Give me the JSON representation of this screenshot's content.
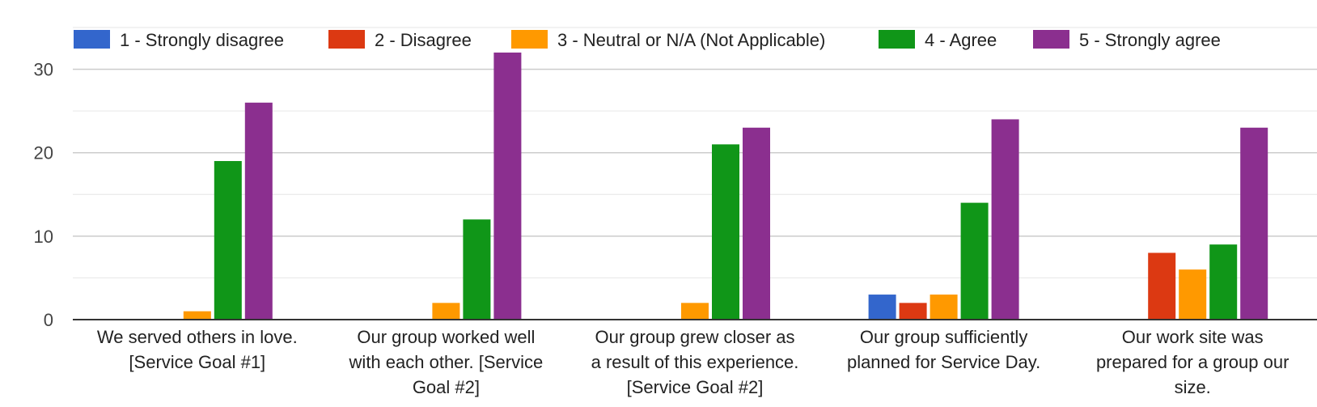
{
  "chart_data": {
    "type": "bar",
    "title": "",
    "xlabel": "",
    "ylabel": "",
    "ylim": [
      0,
      35
    ],
    "yticks": [
      0,
      10,
      20,
      30
    ],
    "grid": true,
    "legend_position": "top",
    "categories": [
      [
        "We served others in love.",
        "[Service Goal #1]"
      ],
      [
        "Our group worked well",
        "with each other. [Service",
        "Goal #2]"
      ],
      [
        "Our group grew closer as",
        "a result of this experience.",
        "[Service Goal #2]"
      ],
      [
        "Our group sufficiently",
        "planned for Service Day."
      ],
      [
        "Our work site was",
        "prepared for a group our",
        "size."
      ]
    ],
    "series": [
      {
        "name": "1 - Strongly disagree",
        "color": "#3366cc",
        "values": [
          0,
          0,
          0,
          3,
          0
        ]
      },
      {
        "name": "2 - Disagree",
        "color": "#dc3912",
        "values": [
          0,
          0,
          0,
          2,
          8
        ]
      },
      {
        "name": "3 - Neutral or N/A (Not Applicable)",
        "color": "#ff9900",
        "values": [
          1,
          2,
          2,
          3,
          6
        ]
      },
      {
        "name": "4 - Agree",
        "color": "#109618",
        "values": [
          19,
          12,
          21,
          14,
          9
        ]
      },
      {
        "name": "5 - Strongly agree",
        "color": "#8b2f8f",
        "values": [
          26,
          32,
          23,
          24,
          23
        ]
      }
    ]
  }
}
